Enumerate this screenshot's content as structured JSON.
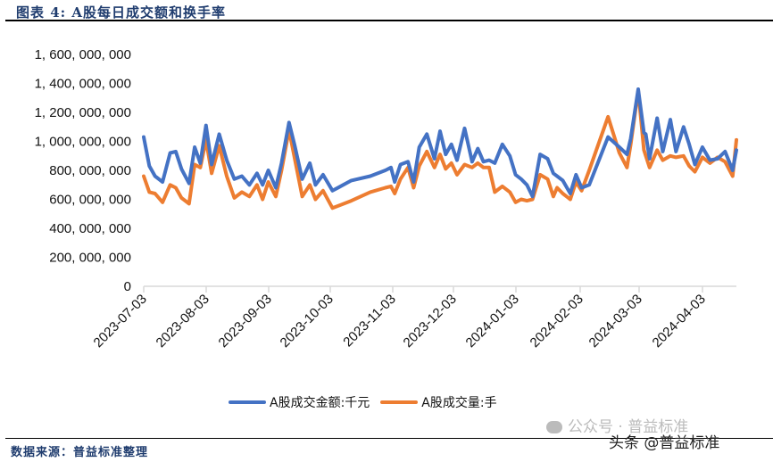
{
  "header": {
    "title": "图表 4:  A股每日成交额和换手率"
  },
  "footer": {
    "source": "数据来源：普益标准整理",
    "watermark_line1": "公众号 · 普益标准",
    "watermark_line2": "头条 @普益标准"
  },
  "legend": [
    {
      "label": "A股成交金额:千元",
      "color": "#4472C4"
    },
    {
      "label": "A股成交量:手",
      "color": "#ED7D31"
    }
  ],
  "chart_data": {
    "type": "line",
    "title": "A股每日成交额和换手率",
    "xlabel": "",
    "ylabel": "",
    "ylim": [
      0,
      1600000000
    ],
    "yticks": [
      "0",
      "200, 000, 000",
      "400, 000, 000",
      "600, 000, 000",
      "800, 000, 000",
      "1, 000, 000, 000",
      "1, 200, 000, 000",
      "1, 400, 000, 000",
      "1, 600, 000, 000"
    ],
    "ytick_values": [
      0,
      200000000,
      400000000,
      600000000,
      800000000,
      1000000000,
      1200000000,
      1400000000,
      1600000000
    ],
    "xticks": [
      "2023-07-03",
      "2023-08-03",
      "2023-09-03",
      "2023-10-03",
      "2023-11-03",
      "2023-12-03",
      "2024-01-03",
      "2024-02-03",
      "2024-03-03",
      "2024-04-03"
    ],
    "grid": false,
    "legend_position": "bottom",
    "x_day_offsets": [
      0,
      3,
      6,
      10,
      14,
      17,
      20,
      24,
      27,
      30,
      33,
      36,
      40,
      44,
      48,
      52,
      56,
      60,
      63,
      66,
      70,
      73,
      77,
      80,
      84,
      88,
      91,
      95,
      100,
      110,
      120,
      128,
      131,
      133,
      136,
      140,
      143,
      146,
      150,
      154,
      157,
      160,
      163,
      166,
      170,
      174,
      177,
      180,
      183,
      186,
      190,
      194,
      197,
      200,
      203,
      206,
      210,
      214,
      217,
      219,
      222,
      226,
      229,
      232,
      236,
      246,
      252,
      256,
      258,
      262,
      265,
      266,
      268,
      272,
      275,
      279,
      282,
      286,
      289,
      292,
      296,
      300,
      304,
      308,
      312,
      314
    ],
    "series": [
      {
        "name": "A股成交金额:千元",
        "color": "#4472C4",
        "values": [
          1030,
          830,
          760,
          720,
          920,
          930,
          810,
          710,
          960,
          850,
          1110,
          840,
          1050,
          870,
          740,
          760,
          700,
          780,
          700,
          800,
          680,
          850,
          1130,
          970,
          740,
          850,
          700,
          770,
          660,
          730,
          760,
          800,
          820,
          720,
          840,
          860,
          720,
          960,
          1050,
          880,
          1070,
          910,
          980,
          870,
          1090,
          860,
          950,
          860,
          870,
          850,
          980,
          900,
          770,
          740,
          700,
          620,
          910,
          880,
          780,
          760,
          730,
          640,
          770,
          680,
          700,
          1030,
          960,
          910,
          1020,
          1360,
          1060,
          1050,
          880,
          1160,
          930,
          1150,
          930,
          1100,
          980,
          840,
          960,
          870,
          880,
          930,
          800,
          940
        ]
      },
      {
        "name": "A股成交量:手",
        "color": "#ED7D31",
        "values": [
          760,
          650,
          640,
          580,
          700,
          680,
          610,
          570,
          840,
          820,
          1010,
          780,
          970,
          760,
          610,
          650,
          620,
          700,
          600,
          720,
          620,
          800,
          1080,
          880,
          620,
          700,
          600,
          660,
          540,
          590,
          650,
          680,
          690,
          640,
          740,
          820,
          680,
          830,
          930,
          820,
          910,
          810,
          850,
          770,
          840,
          820,
          850,
          820,
          820,
          650,
          690,
          650,
          580,
          600,
          590,
          600,
          770,
          740,
          620,
          680,
          640,
          600,
          720,
          660,
          800,
          1170,
          920,
          820,
          980,
          1350,
          940,
          900,
          820,
          940,
          870,
          900,
          890,
          900,
          830,
          790,
          890,
          850,
          890,
          860,
          760,
          1010
        ]
      }
    ],
    "value_unit_note": "values above are in millions (multiply by 1,000,000)"
  }
}
